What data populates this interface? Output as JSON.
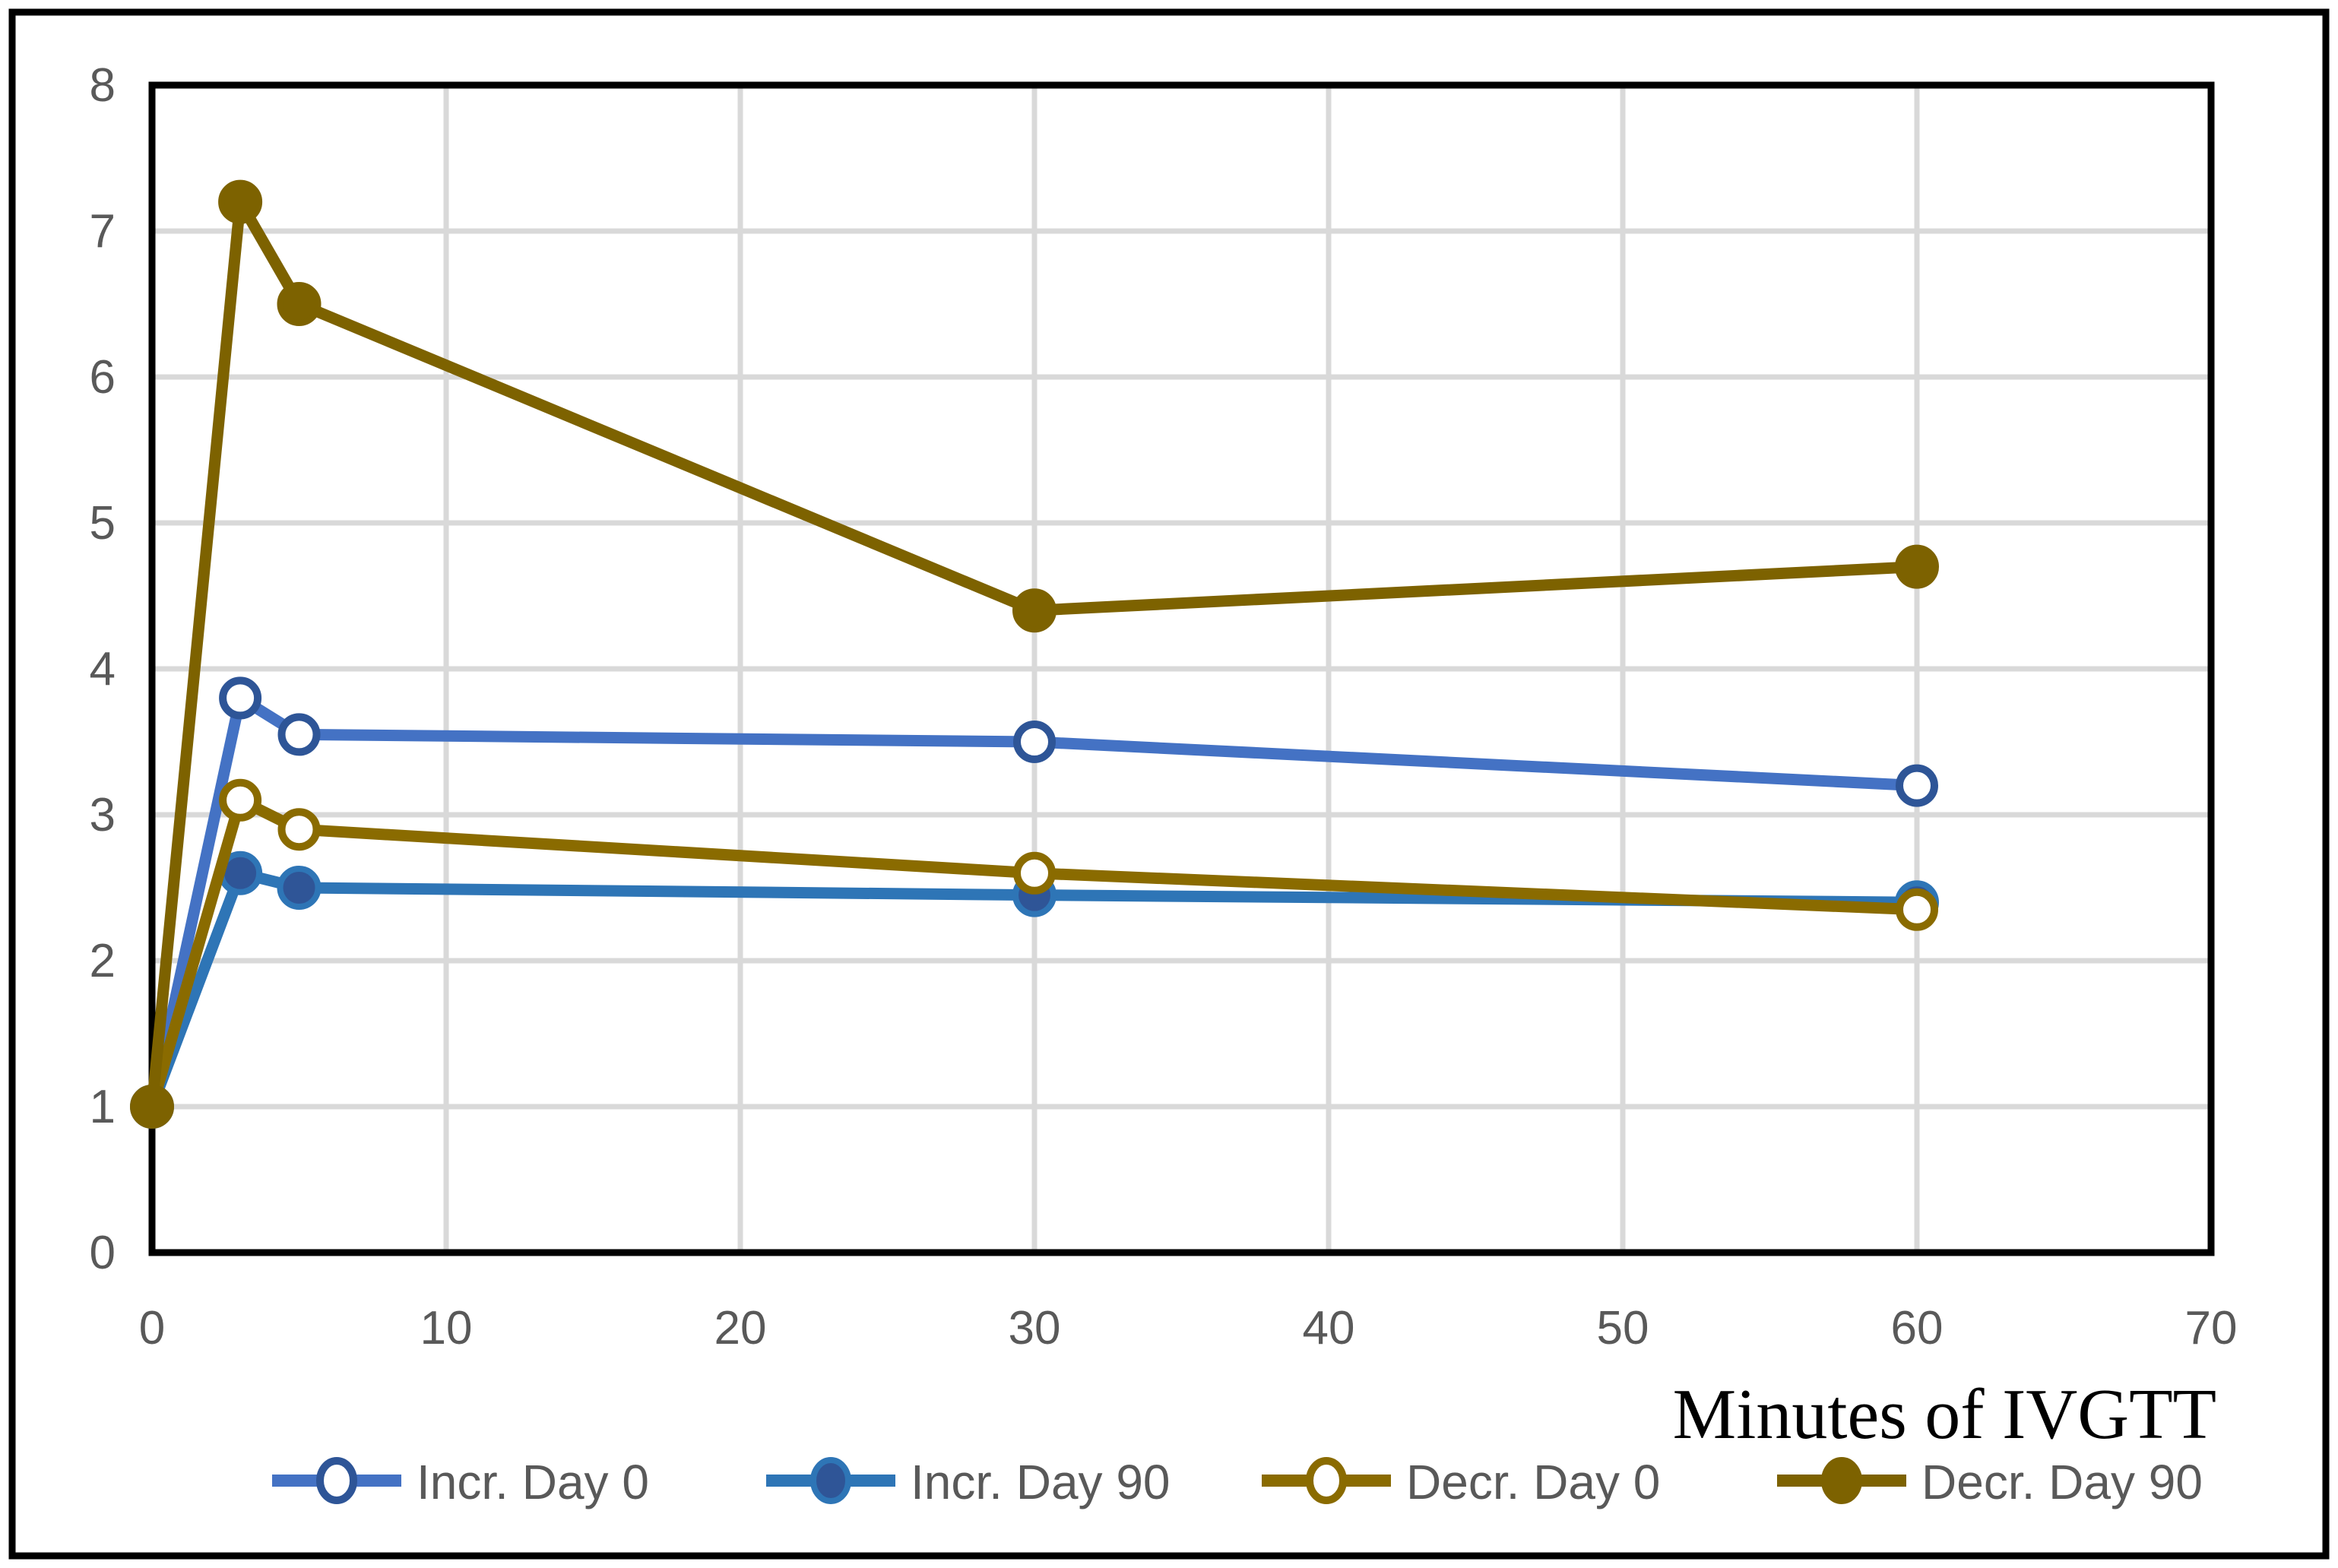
{
  "figure": {
    "background": "#ffffff",
    "border_color": "#000000",
    "plot_border_color": "#000000",
    "gridline_color": "#d9d9d9",
    "tick_label_color": "#595959",
    "axis_title_color": "#000000"
  },
  "chart_data": {
    "type": "line",
    "title": "",
    "xlabel": "Minutes of IVGTT",
    "ylabel": "",
    "x": [
      0,
      3,
      5,
      30,
      60
    ],
    "series": [
      {
        "name": "Incr. Day 0",
        "values": [
          1.0,
          3.8,
          3.55,
          3.5,
          3.2
        ],
        "line_color": "#4472C4",
        "marker": "open",
        "marker_edge": "#2E5597",
        "marker_fill": "#ffffff"
      },
      {
        "name": "Incr. Day 90",
        "values": [
          1.0,
          2.6,
          2.5,
          2.45,
          2.4
        ],
        "line_color": "#2E75B6",
        "marker": "filled",
        "marker_edge": "#2E75B6",
        "marker_fill": "#2F5597"
      },
      {
        "name": "Decr. Day 0",
        "values": [
          1.0,
          3.1,
          2.9,
          2.6,
          2.35
        ],
        "line_color": "#8A6B00",
        "marker": "open",
        "marker_edge": "#8A6B00",
        "marker_fill": "#ffffff"
      },
      {
        "name": "Decr. Day 90",
        "values": [
          1.0,
          7.2,
          6.5,
          4.4,
          4.7
        ],
        "line_color": "#7D6200",
        "marker": "filled",
        "marker_edge": "#7D6200",
        "marker_fill": "#7D6200"
      }
    ],
    "xlim": [
      0,
      70
    ],
    "ylim": [
      0,
      8
    ],
    "xticks": [
      0,
      10,
      20,
      30,
      40,
      50,
      60,
      70
    ],
    "yticks": [
      0,
      1,
      2,
      3,
      4,
      5,
      6,
      7,
      8
    ],
    "grid": true,
    "legend_position": "bottom"
  }
}
